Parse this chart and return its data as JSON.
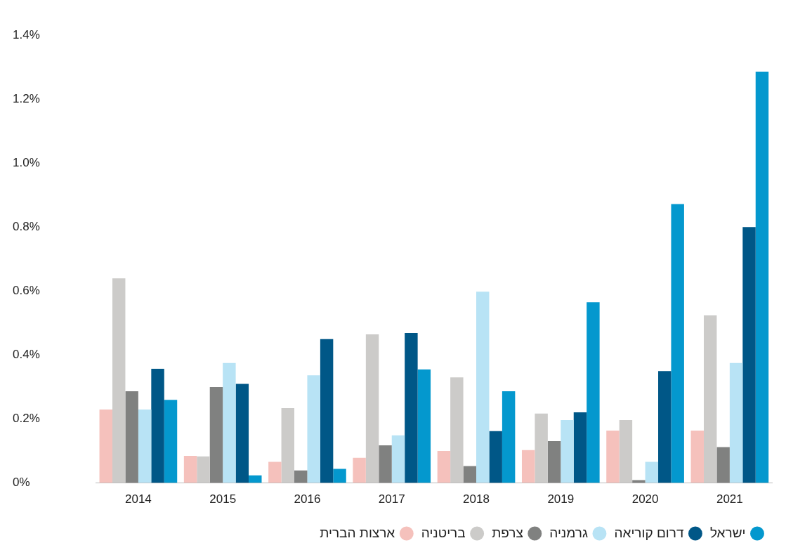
{
  "chart_data": {
    "type": "bar",
    "categories": [
      "2014",
      "2015",
      "2016",
      "2017",
      "2018",
      "2019",
      "2020",
      "2021"
    ],
    "series": [
      {
        "name": "ארצות הברית",
        "color": "#f5c1bc",
        "values": [
          0.23,
          0.085,
          0.066,
          0.079,
          0.1,
          0.103,
          0.164,
          0.164
        ]
      },
      {
        "name": "בריטניה",
        "color": "#cccbc9",
        "values": [
          0.64,
          0.083,
          0.234,
          0.465,
          0.33,
          0.217,
          0.197,
          0.524
        ]
      },
      {
        "name": "צרפת",
        "color": "#808180",
        "values": [
          0.287,
          0.3,
          0.039,
          0.118,
          0.053,
          0.131,
          0.009,
          0.112
        ]
      },
      {
        "name": "גרמניה",
        "color": "#b8e3f5",
        "values": [
          0.23,
          0.375,
          0.337,
          0.149,
          0.598,
          0.197,
          0.066,
          0.375
        ]
      },
      {
        "name": "דרום קוריאה",
        "color": "#005787",
        "values": [
          0.357,
          0.31,
          0.45,
          0.469,
          0.162,
          0.221,
          0.35,
          0.8
        ]
      },
      {
        "name": "ישראל",
        "color": "#0498ce",
        "values": [
          0.26,
          0.024,
          0.044,
          0.355,
          0.287,
          0.565,
          0.872,
          1.286
        ]
      }
    ],
    "ylim": [
      0,
      1.4
    ],
    "yticks": [
      {
        "value": 0,
        "label": "0%"
      },
      {
        "value": 0.2,
        "label": "0.2%"
      },
      {
        "value": 0.4,
        "label": "0.4%"
      },
      {
        "value": 0.6,
        "label": "0.6%"
      },
      {
        "value": 0.8,
        "label": "0.8%"
      },
      {
        "value": 1,
        "label": "1.0%"
      },
      {
        "value": 1.2,
        "label": "1.2%"
      },
      {
        "value": 1.4,
        "label": "1.4%"
      }
    ],
    "grid": false,
    "legend": "bottom right"
  }
}
